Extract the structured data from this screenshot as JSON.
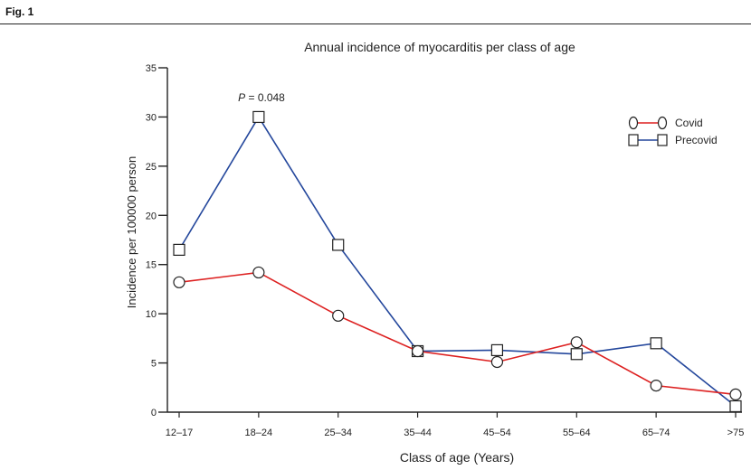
{
  "figure_label": "Fig. 1",
  "chart_data": {
    "type": "line",
    "title": "Annual incidence of myocarditis per class of age",
    "xlabel": "Class of age (Years)",
    "ylabel": "Incidence per 100000 person",
    "categories": [
      "12–17",
      "18–24",
      "25–34",
      "35–44",
      "45–54",
      "55–64",
      "65–74",
      ">75"
    ],
    "ylim": [
      0,
      35
    ],
    "yticks": [
      "0",
      "5",
      "10",
      "15",
      "20",
      "25",
      "30",
      "35"
    ],
    "grid": false,
    "legend_position": "top-right",
    "annotation": {
      "prefix": "P",
      "text": " = 0.048",
      "category": "18–24"
    },
    "series": [
      {
        "name": "Covid",
        "marker": "circle",
        "color": "#dd2020",
        "values": [
          13.2,
          14.2,
          9.8,
          6.2,
          5.1,
          7.1,
          2.7,
          1.8
        ]
      },
      {
        "name": "Precovid",
        "marker": "square",
        "color": "#24479c",
        "values": [
          16.5,
          30.0,
          17.0,
          6.2,
          6.3,
          5.9,
          7.0,
          0.6
        ]
      }
    ]
  }
}
